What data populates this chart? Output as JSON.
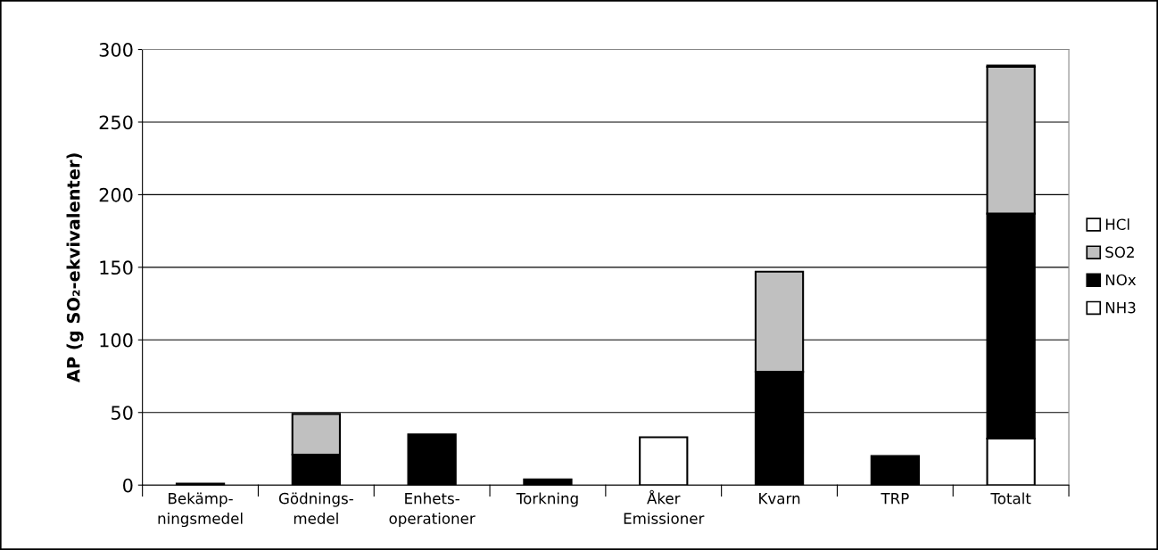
{
  "chart_data": {
    "type": "bar",
    "stacked": true,
    "ylabel": "AP (g SO₂-ekvivalenter)",
    "categories": [
      "Bekämp-\nningsmedel",
      "Gödnings-\nmedel",
      "Enhets-\noperationer",
      "Torkning",
      "Åker\nEmissioner",
      "Kvarn",
      "TRP",
      "Totalt"
    ],
    "series": [
      {
        "name": "NH3",
        "color": "#ffffff",
        "values": [
          null,
          null,
          null,
          null,
          33,
          null,
          null,
          32
        ]
      },
      {
        "name": "NOx",
        "color": "#000000",
        "values": [
          1,
          21,
          35,
          4,
          null,
          78,
          20,
          155
        ]
      },
      {
        "name": "SO2",
        "color": "#c0c0c0",
        "values": [
          null,
          28,
          null,
          null,
          null,
          69,
          null,
          101
        ]
      },
      {
        "name": "HCl",
        "color": "#ffffff",
        "values": [
          null,
          null,
          null,
          null,
          null,
          null,
          null,
          1
        ]
      }
    ],
    "ylim": [
      0,
      300
    ],
    "yticks": [
      0,
      50,
      100,
      150,
      200,
      250,
      300
    ],
    "grid": "y",
    "legend": "right"
  }
}
